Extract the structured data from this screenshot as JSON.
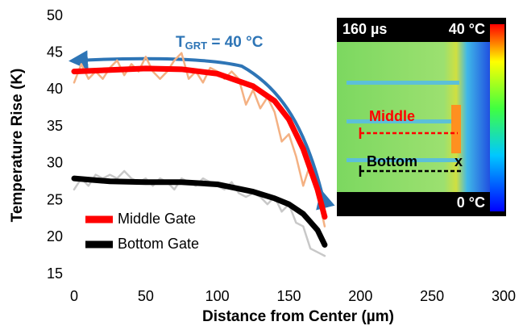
{
  "chart_data": {
    "type": "line",
    "xlabel": "Distance from Center (µm)",
    "ylabel": "Temperature Rise (K)",
    "xlim": [
      0,
      300
    ],
    "xticks": [
      0,
      50,
      100,
      150,
      200,
      250,
      300
    ],
    "ylim": [
      15,
      50
    ],
    "yticks": [
      15,
      20,
      25,
      30,
      35,
      40,
      45,
      50
    ],
    "legend": "lower left",
    "annotation": {
      "main": "T",
      "sub": "GRT",
      "rest": " = 40 °C",
      "color": "#2e75b6"
    },
    "inset": {
      "time": "160 µs",
      "max": "40 °C",
      "min": "0 °C",
      "middle": "Middle",
      "bottom": "Bottom",
      "axis": "x"
    },
    "series": [
      {
        "color": "#f4b183",
        "width": 2.5,
        "x": [
          0,
          5,
          10,
          15,
          20,
          25,
          30,
          35,
          40,
          45,
          50,
          55,
          60,
          65,
          70,
          75,
          80,
          85,
          90,
          95,
          100,
          105,
          110,
          115,
          120,
          125,
          130,
          135,
          140,
          145,
          150,
          155,
          160,
          165,
          170,
          175
        ],
        "values": [
          41,
          43.5,
          41.5,
          42.5,
          41.5,
          43,
          44,
          42,
          43.5,
          42.5,
          44.5,
          42.5,
          41.5,
          42.5,
          44,
          45,
          41.5,
          42.5,
          41,
          43,
          42.5,
          41.5,
          42.5,
          41.5,
          38,
          40,
          37.5,
          39,
          37,
          33,
          34,
          31,
          27,
          30,
          26,
          21.5
        ]
      },
      {
        "color": "#c8c8c8",
        "width": 2.5,
        "x": [
          0,
          5,
          10,
          15,
          20,
          25,
          30,
          35,
          40,
          45,
          50,
          55,
          60,
          65,
          70,
          75,
          80,
          85,
          90,
          95,
          100,
          105,
          110,
          115,
          120,
          125,
          130,
          135,
          140,
          145,
          150,
          155,
          160,
          165,
          170,
          175
        ],
        "values": [
          26.5,
          28,
          27,
          28.5,
          28,
          28.5,
          28,
          29,
          28,
          27.5,
          28,
          27,
          28,
          27.5,
          26.5,
          28,
          27.5,
          27,
          28,
          27.5,
          27,
          26.5,
          27.5,
          26,
          25.5,
          26,
          25.5,
          24.5,
          25.5,
          23.5,
          24.5,
          22,
          21.5,
          18.5,
          18,
          17.5
        ]
      },
      {
        "name": "Middle Gate",
        "color": "#ff0000",
        "width": 7,
        "x": [
          0,
          25,
          50,
          75,
          100,
          125,
          140,
          150,
          160,
          170,
          175
        ],
        "values": [
          42.5,
          42.7,
          42.9,
          42.8,
          42.2,
          40.5,
          38.5,
          36,
          32,
          26.5,
          22.8
        ]
      },
      {
        "name": "Bottom Gate",
        "color": "#000000",
        "width": 7,
        "x": [
          0,
          25,
          50,
          75,
          100,
          125,
          140,
          150,
          160,
          170,
          175
        ],
        "values": [
          28,
          27.6,
          27.5,
          27.5,
          27.2,
          26.2,
          25.3,
          24.5,
          23.2,
          21,
          19
        ]
      }
    ]
  }
}
